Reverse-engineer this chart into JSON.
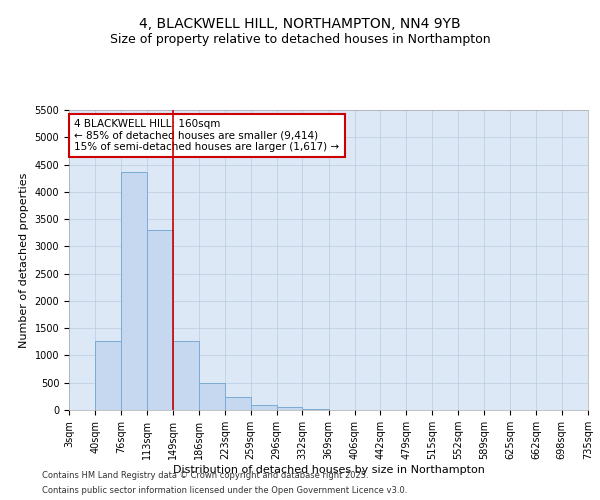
{
  "title1": "4, BLACKWELL HILL, NORTHAMPTON, NN4 9YB",
  "title2": "Size of property relative to detached houses in Northampton",
  "xlabel": "Distribution of detached houses by size in Northampton",
  "ylabel": "Number of detached properties",
  "bins": [
    3,
    40,
    76,
    113,
    149,
    186,
    223,
    259,
    296,
    332,
    369,
    406,
    442,
    479,
    515,
    552,
    589,
    625,
    662,
    698,
    735
  ],
  "counts": [
    0,
    1270,
    4370,
    3300,
    1270,
    500,
    240,
    90,
    50,
    10,
    0,
    0,
    0,
    0,
    0,
    0,
    0,
    0,
    0,
    0
  ],
  "bar_color": "#c5d8f0",
  "bar_edge_color": "#7aaad4",
  "vline_x": 149,
  "vline_color": "#cc0000",
  "ylim": [
    0,
    5500
  ],
  "yticks": [
    0,
    500,
    1000,
    1500,
    2000,
    2500,
    3000,
    3500,
    4000,
    4500,
    5000,
    5500
  ],
  "annotation_text": "4 BLACKWELL HILL: 160sqm\n← 85% of detached houses are smaller (9,414)\n15% of semi-detached houses are larger (1,617) →",
  "annotation_box_facecolor": "#ffffff",
  "annotation_box_edgecolor": "#cc0000",
  "plot_bg_color": "#dce8f5",
  "grid_color": "#b8cce0",
  "footer1": "Contains HM Land Registry data © Crown copyright and database right 2025.",
  "footer2": "Contains public sector information licensed under the Open Government Licence v3.0.",
  "title1_fontsize": 10,
  "title2_fontsize": 9,
  "axis_label_fontsize": 8,
  "tick_fontsize": 7,
  "annotation_fontsize": 7.5,
  "footer_fontsize": 6
}
